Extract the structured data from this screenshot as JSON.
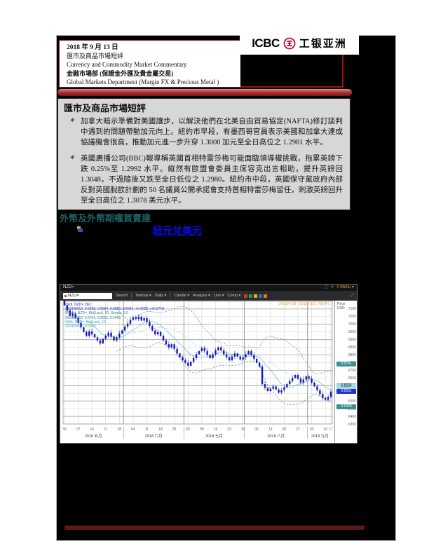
{
  "doc_header": {
    "date": "2018 年 9 月 13 日",
    "title_cn": "匯市及商品市場短評",
    "title_en": "Currency and Commodity Market Commentary",
    "dept_cn": "金融市場部 (保證金外匯及貴金屬交易)",
    "dept_en": "Global Markets Department (Margin FX & Precious Metal )"
  },
  "logo": {
    "icbc": "ICBC",
    "asia": "工银亚洲"
  },
  "commentary": {
    "title": "匯市及商品市場短評",
    "bullet1": "加拿大暗示準備對美國讓步，以解決他們在北美自由貿易協定(NAFTA)修訂談判中遇到的問題帶動加元向上。紐約市早段，有墨西哥官員表示美國和加拿大達成協議機會很高，推動加元進一步升穿 1.3000 加元至全日高位之 1.2981 水平。",
    "bullet2": "英國廣播公司(BBC)報導稱英國首相特雷莎梅可能面臨領導權挑戰，拖累英鎊下跌 0.25%至 1.2992 水平。縱然有歐盟會委員主席容克出言相助，提升英鎊回 1.3048，不過隨後又跌至全日低位之 1.2980。紐約市中段，英國保守黨政府內部反對英國脫歐計劃的 50 名議員公開承諾會支持首相特雷莎梅留任，刺激英鎊回升至全日高位之 1.3078 美元水平。"
  },
  "fx_section": {
    "title": "外幣及外幣期權買賣建",
    "link_label": "紐元兌美元"
  },
  "chart_data": {
    "type": "candlestick",
    "window_title": "NZD=",
    "search_value": "NZD=",
    "date_range": "2018/4/28 - 2018/10/2 (GMT)",
    "axis_title": [
      "Price",
      "USD"
    ],
    "ylim": [
      0.635,
      0.715
    ],
    "grid_step": 0.005,
    "y_ticks": [
      0.71,
      0.705,
      0.7,
      0.695,
      0.69,
      0.685,
      0.68,
      0.675,
      0.67,
      0.665,
      0.65,
      0.645,
      0.64,
      0.635
    ],
    "highlights": [
      {
        "v": 0.6741,
        "label": "0.6741",
        "bg": "#3d8f8f",
        "fg": "#ffffff"
      },
      {
        "v": 0.6601,
        "label": "0.6601",
        "bg": "#aab4b8",
        "fg": "#222222"
      },
      {
        "v": 0.6594,
        "label": "0.6594",
        "bg": "#9fdbe8",
        "fg": "#222222"
      },
      {
        "v": 0.6561,
        "label": "0.6561",
        "bg": "#2233cc",
        "fg": "#ffffff"
      },
      {
        "v": 0.646,
        "label": "0.6460",
        "bg": "#3d8f8f",
        "fg": "#ffffff"
      }
    ],
    "open_first": 0.716,
    "closes": [
      0.7125,
      0.709,
      0.7055,
      0.707,
      0.704,
      0.701,
      0.698,
      0.695,
      0.6925,
      0.6955,
      0.6935,
      0.6915,
      0.6895,
      0.6875,
      0.6905,
      0.6925,
      0.6945,
      0.692,
      0.6895,
      0.6915,
      0.694,
      0.696,
      0.6985,
      0.7005,
      0.703,
      0.7045,
      0.7035,
      0.705,
      0.7025,
      0.704,
      0.7015,
      0.699,
      0.696,
      0.6935,
      0.695,
      0.6925,
      0.6895,
      0.687,
      0.685,
      0.687,
      0.684,
      0.681,
      0.6785,
      0.6765,
      0.675,
      0.673,
      0.6755,
      0.678,
      0.6805,
      0.6825,
      0.6845,
      0.6825,
      0.68,
      0.678,
      0.6805,
      0.683,
      0.685,
      0.683,
      0.6805,
      0.6785,
      0.6765,
      0.679,
      0.681,
      0.679,
      0.677,
      0.6785,
      0.6805,
      0.6825,
      0.68,
      0.6775,
      0.675,
      0.6725,
      0.661,
      0.6585,
      0.6565,
      0.658,
      0.6595,
      0.6575,
      0.6555,
      0.657,
      0.659,
      0.661,
      0.663,
      0.665,
      0.667,
      0.6645,
      0.662,
      0.664,
      0.666,
      0.6645,
      0.662,
      0.6595,
      0.657,
      0.6545,
      0.652,
      0.6508,
      0.6526,
      0.6561
    ],
    "months": [
      {
        "label": "2018 五月",
        "count": 22
      },
      {
        "label": "2018 六月",
        "count": 22
      },
      {
        "label": "2018 七月",
        "count": 22
      },
      {
        "label": "2018 八月",
        "count": 23
      },
      {
        "label": "2018 九月",
        "count": 9
      }
    ],
    "week_day_labels": [
      "30",
      "07",
      "14",
      "21",
      "28",
      "04",
      "11",
      "18",
      "25",
      "02",
      "09",
      "16",
      "23",
      "30",
      "06",
      "13",
      "20",
      "27",
      "03",
      "10",
      "17"
    ],
    "legend": [
      {
        "text": "Cndl, NZD=, Bid,",
        "color": "#2b2bd0"
      },
      {
        "text": "2018/09/12, 0.6528, 0.6594, 0.6520, 0.6561, +0.0035, (+0.57%)",
        "color": "#2b2bd0"
      },
      {
        "text": "BBand, NZD=, Bid(Last), 20, Simple, 2.0",
        "color": "#2e8b8b"
      },
      {
        "text": "2018/09/12, 0.6741, 0.6601, 0.6460",
        "color": "#2e8b8b"
      },
      {
        "text": "SMA, NZD=, Bid(Last), 10",
        "color": "#3aa7c0"
      },
      {
        "text": "2018/09/12, 0.6594",
        "color": "#3aa7c0"
      }
    ],
    "toolbar": [
      "Search",
      "Interval ▾",
      "Daily ▾",
      "Candle ▾",
      "Analysis ▾",
      "Line ▾",
      "Comp ▾"
    ],
    "toolbar_square_colors": [
      "#cc3b30",
      "#2e9e44",
      "#e3b320",
      "#3566cc",
      "#e07820"
    ],
    "menu_label": "≡ Menu ▾",
    "window_buttons": [
      "–",
      "▢",
      "✕"
    ],
    "indicators": {
      "bband_window": 20,
      "bband_mult": 2,
      "sma_window": 10
    },
    "colors": {
      "candle": "#1a1ab8",
      "band": "#3d9999",
      "band_mid": "#6fb0b0",
      "sma": "#66c4d8",
      "grid_major": "#9f9f9f",
      "grid_minor": "#d2d2d2",
      "month_boundary": "#8e8e8e"
    }
  },
  "page_colors": {
    "link_blue": "#0b0bee",
    "section_teal": "#1d6262",
    "header_border_red": "#a31111",
    "divider_red": "#b23434",
    "footer_maroon": "#5c1919",
    "commentary_gray": "#d7d7d7",
    "icbc_red": "#c8102e"
  }
}
